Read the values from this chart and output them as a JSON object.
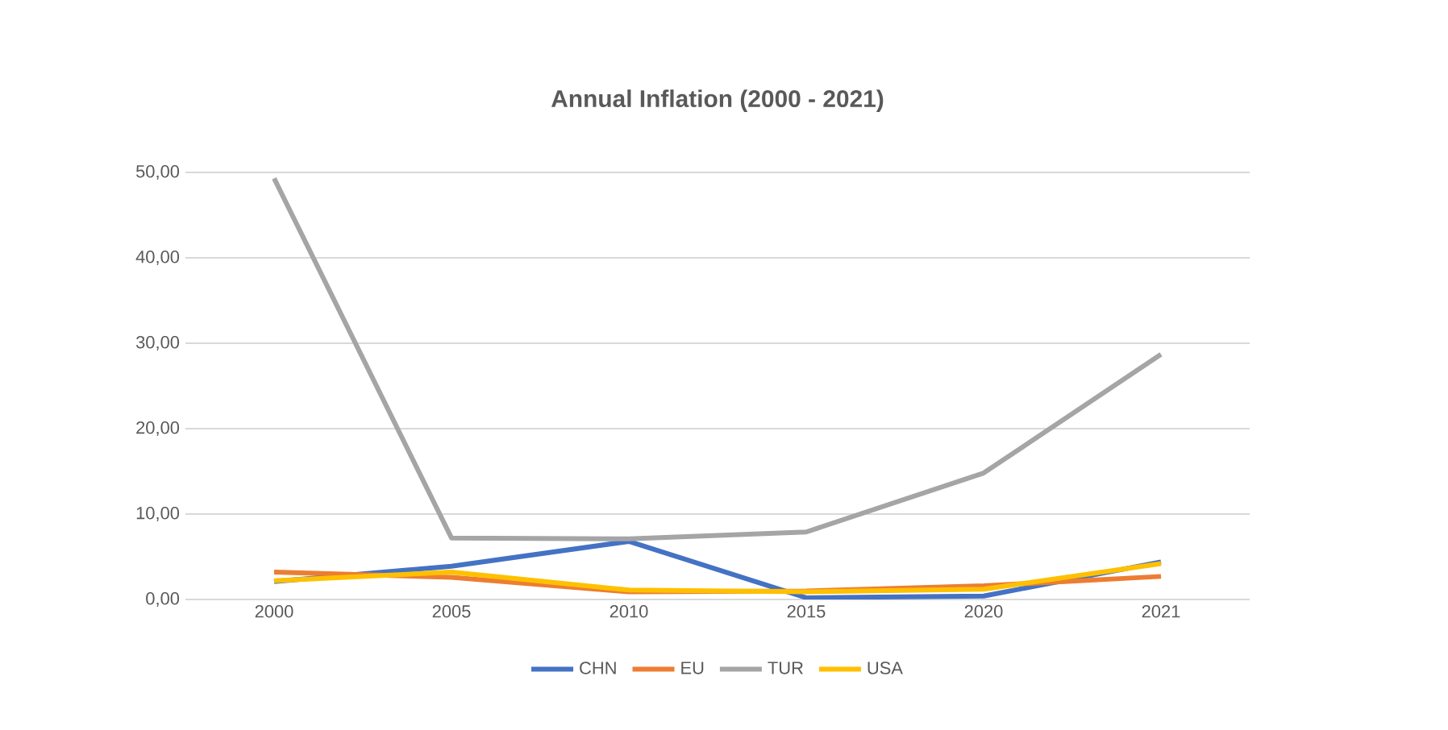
{
  "chart_data": {
    "type": "line",
    "title": "Annual Inflation (2000 - 2021)",
    "categories": [
      "2000",
      "2005",
      "2010",
      "2015",
      "2020",
      "2021"
    ],
    "series": [
      {
        "name": "CHN",
        "color": "#4472c4",
        "values": [
          2.1,
          3.9,
          6.8,
          0.2,
          0.4,
          4.4
        ]
      },
      {
        "name": "EU",
        "color": "#ed7d31",
        "values": [
          3.2,
          2.6,
          0.9,
          1.0,
          1.6,
          2.7
        ]
      },
      {
        "name": "TUR",
        "color": "#a5a5a5",
        "values": [
          49.3,
          7.2,
          7.1,
          7.9,
          14.8,
          28.7
        ]
      },
      {
        "name": "USA",
        "color": "#ffc000",
        "values": [
          2.2,
          3.2,
          1.1,
          0.9,
          1.2,
          4.2
        ]
      }
    ],
    "ylim": [
      0,
      50
    ],
    "yticks": [
      {
        "value": 0,
        "label": "0,00"
      },
      {
        "value": 10,
        "label": "10,00"
      },
      {
        "value": 20,
        "label": "20,00"
      },
      {
        "value": 30,
        "label": "30,00"
      },
      {
        "value": 40,
        "label": "40,00"
      },
      {
        "value": 50,
        "label": "50,00"
      }
    ],
    "grid": "y",
    "legend": "bottom",
    "marker": "none",
    "line_style": "solid"
  }
}
